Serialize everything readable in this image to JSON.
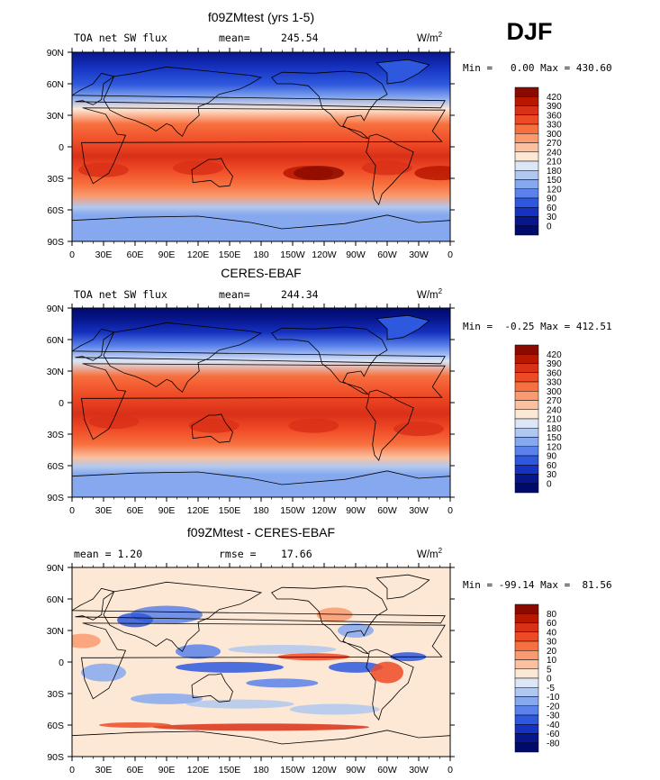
{
  "season": "DJF",
  "units_base": "W/m",
  "units_exp": "2",
  "x_ticks": [
    "0",
    "30E",
    "60E",
    "90E",
    "120E",
    "150E",
    "180",
    "150W",
    "120W",
    "90W",
    "60W",
    "30W",
    "0"
  ],
  "y_ticks": [
    "90N",
    "60N",
    "30N",
    "0",
    "30S",
    "60S",
    "90S"
  ],
  "panels": [
    {
      "title": "f09ZMtest (yrs 1-5)",
      "left_label": "TOA net SW flux",
      "stat_label": "mean=",
      "stat_value": "245.54",
      "stats_text": "Min =   0.00 Max = 430.60",
      "colorbar_labels": [
        "420",
        "390",
        "360",
        "330",
        "300",
        "270",
        "240",
        "210",
        "180",
        "150",
        "120",
        "90",
        "60",
        "30",
        "0"
      ],
      "colorbar_colors": [
        "#8b0a00",
        "#b81800",
        "#d93018",
        "#ef4a26",
        "#f7703e",
        "#fa9a6e",
        "#fbc0a0",
        "#fde8d6",
        "#dbe6f6",
        "#b0c8f0",
        "#86a8ee",
        "#5a82ea",
        "#2e58de",
        "#1532c0",
        "#08168e",
        "#000a6a"
      ],
      "chart_data": {
        "type": "heatmap",
        "field": "TOA net SW flux",
        "mean": 245.54,
        "min": 0.0,
        "max": 430.6,
        "levels": [
          0,
          30,
          60,
          90,
          120,
          150,
          180,
          210,
          240,
          270,
          300,
          330,
          360,
          390,
          420
        ],
        "x_range": [
          "0",
          "0"
        ],
        "y_range": [
          "90S",
          "90N"
        ]
      }
    },
    {
      "title": "CERES-EBAF",
      "left_label": "TOA net SW flux",
      "stat_label": "mean=",
      "stat_value": "244.34",
      "stats_text": "Min =  -0.25 Max = 412.51",
      "colorbar_labels": [
        "420",
        "390",
        "360",
        "330",
        "300",
        "270",
        "240",
        "210",
        "180",
        "150",
        "120",
        "90",
        "60",
        "30",
        "0"
      ],
      "colorbar_colors": [
        "#8b0a00",
        "#b81800",
        "#d93018",
        "#ef4a26",
        "#f7703e",
        "#fa9a6e",
        "#fbc0a0",
        "#fde8d6",
        "#dbe6f6",
        "#b0c8f0",
        "#86a8ee",
        "#5a82ea",
        "#2e58de",
        "#1532c0",
        "#08168e",
        "#000a6a"
      ],
      "chart_data": {
        "type": "heatmap",
        "field": "TOA net SW flux",
        "mean": 244.34,
        "min": -0.25,
        "max": 412.51,
        "levels": [
          0,
          30,
          60,
          90,
          120,
          150,
          180,
          210,
          240,
          270,
          300,
          330,
          360,
          390,
          420
        ],
        "x_range": [
          "0",
          "0"
        ],
        "y_range": [
          "90S",
          "90N"
        ]
      }
    },
    {
      "title": "f09ZMtest - CERES-EBAF",
      "left_label": "mean =    1.20",
      "stat_label": "rmse =",
      "stat_value": "17.66",
      "stats_text": "Min = -99.14 Max =  81.56",
      "colorbar_labels": [
        "80",
        "60",
        "40",
        "30",
        "20",
        "10",
        "5",
        "0",
        "-5",
        "-10",
        "-20",
        "-30",
        "-40",
        "-60",
        "-80"
      ],
      "colorbar_colors": [
        "#8b0a00",
        "#b81800",
        "#d93018",
        "#ef4a26",
        "#f7703e",
        "#fa9a6e",
        "#fbc0a0",
        "#fde8d6",
        "#dbe6f6",
        "#b0c8f0",
        "#86a8ee",
        "#5a82ea",
        "#2e58de",
        "#1532c0",
        "#08168e",
        "#000a6a"
      ],
      "chart_data": {
        "type": "heatmap",
        "field": "difference",
        "mean": 1.2,
        "rmse": 17.66,
        "min": -99.14,
        "max": 81.56,
        "levels": [
          -80,
          -60,
          -40,
          -30,
          -20,
          -10,
          -5,
          0,
          5,
          10,
          20,
          30,
          40,
          60,
          80
        ],
        "x_range": [
          "0",
          "0"
        ],
        "y_range": [
          "90S",
          "90N"
        ]
      }
    }
  ]
}
